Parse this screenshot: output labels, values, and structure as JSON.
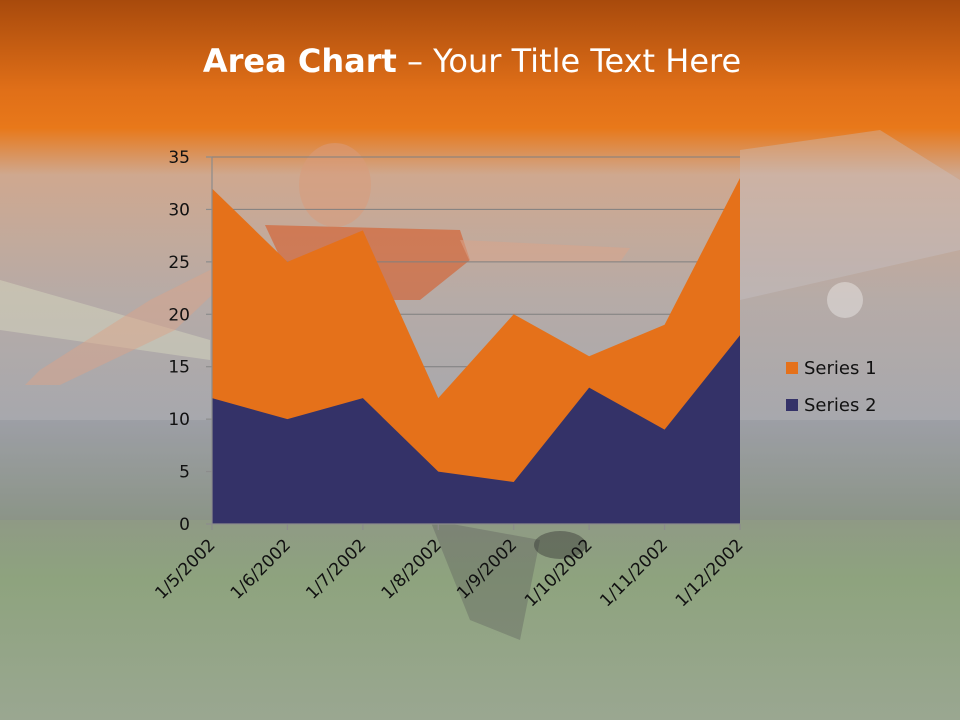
{
  "slide": {
    "title_bold": "Area Chart",
    "title_rest": " – Your Title Text Here"
  },
  "colors": {
    "series_1": "#e5711a",
    "series_2": "#343268",
    "gridline": "#7f7f7f",
    "axis": "#8c8c8c"
  },
  "chart_data": {
    "type": "area",
    "stacked": true,
    "categories": [
      "1/5/2002",
      "1/6/2002",
      "1/7/2002",
      "1/8/2002",
      "1/9/2002",
      "1/10/2002",
      "1/11/2002",
      "1/12/2002"
    ],
    "series": [
      {
        "name": "Series 1",
        "values": [
          20,
          15,
          16,
          7,
          16,
          3,
          10,
          15
        ]
      },
      {
        "name": "Series 2",
        "values": [
          12,
          10,
          12,
          5,
          4,
          13,
          9,
          18
        ]
      }
    ],
    "ylim": [
      0,
      35
    ],
    "yticks": [
      0,
      5,
      10,
      15,
      20,
      25,
      30,
      35
    ],
    "grid": true,
    "legend_position": "right"
  }
}
